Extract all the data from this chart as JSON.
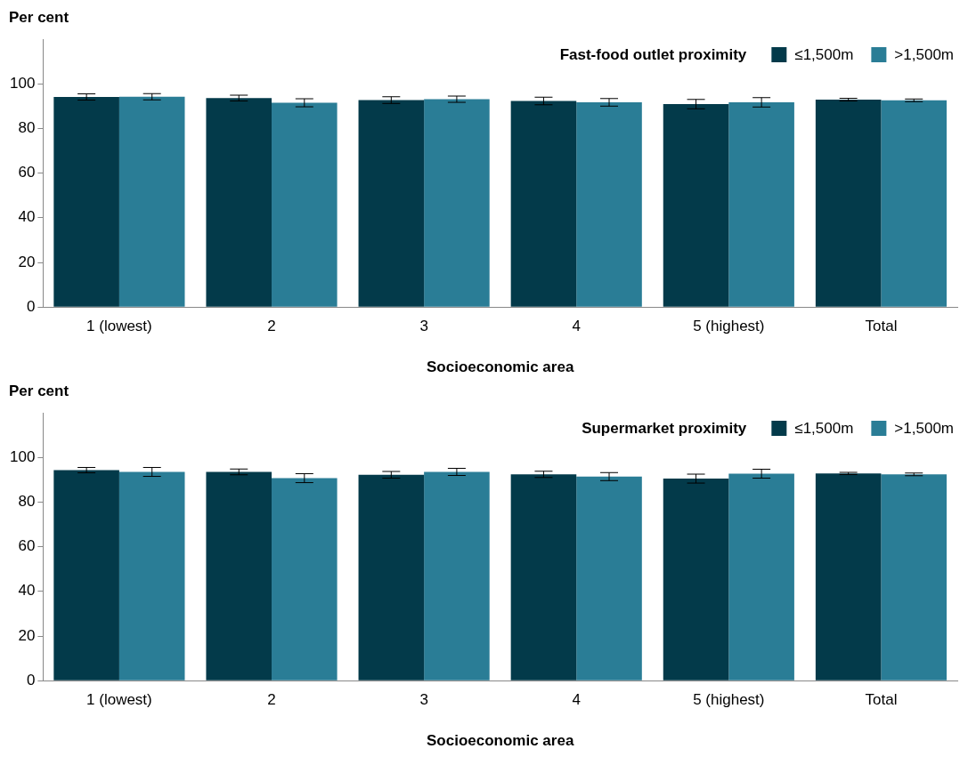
{
  "chart_data": [
    {
      "type": "bar",
      "legend_title": "Fast-food outlet proximity",
      "xlabel": "Socioeconomic area",
      "ylabel": "Per cent",
      "categories": [
        "1 (lowest)",
        "2",
        "3",
        "4",
        "5 (highest)",
        "Total"
      ],
      "series": [
        {
          "name": "≤1,500m",
          "color": "#033a4a",
          "values": [
            94.1,
            93.6,
            92.7,
            92.3,
            90.9,
            92.9
          ],
          "errors": [
            1.4,
            1.3,
            1.5,
            1.7,
            2.1,
            0.6
          ]
        },
        {
          "name": ">1,500m",
          "color": "#2a7d96",
          "values": [
            94.2,
            91.5,
            93.1,
            91.7,
            91.7,
            92.6
          ],
          "errors": [
            1.4,
            1.8,
            1.4,
            1.7,
            2.1,
            0.6
          ]
        }
      ],
      "ylim": [
        0,
        120
      ],
      "yticks": [
        0,
        20,
        40,
        60,
        80,
        100
      ],
      "legend": "top right",
      "grid": false
    },
    {
      "type": "bar",
      "legend_title": "Supermarket proximity",
      "xlabel": "Socioeconomic area",
      "ylabel": "Per cent",
      "categories": [
        "1 (lowest)",
        "2",
        "3",
        "4",
        "5 (highest)",
        "Total"
      ],
      "series": [
        {
          "name": "≤1,500m",
          "color": "#033a4a",
          "values": [
            94.3,
            93.5,
            92.2,
            92.4,
            90.5,
            92.8
          ],
          "errors": [
            1.2,
            1.3,
            1.5,
            1.4,
            2.0,
            0.5
          ]
        },
        {
          "name": ">1,500m",
          "color": "#2a7d96",
          "values": [
            93.5,
            90.7,
            93.5,
            91.4,
            92.7,
            92.4
          ],
          "errors": [
            2.0,
            2.0,
            1.6,
            1.8,
            2.0,
            0.6
          ]
        }
      ],
      "ylim": [
        0,
        120
      ],
      "yticks": [
        0,
        20,
        40,
        60,
        80,
        100
      ],
      "legend": "top right",
      "grid": false
    }
  ]
}
